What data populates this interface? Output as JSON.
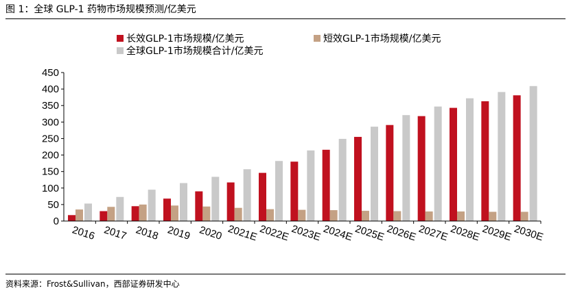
{
  "figure": {
    "title": "图 1：全球 GLP-1 药物市场规模预测/亿美元",
    "source": "资料来源：Frost&Sullivan，西部证券研发中心"
  },
  "colors": {
    "long_acting": "#c0111f",
    "short_acting": "#c4a184",
    "total": "#c9c9c9"
  },
  "chart_data": {
    "type": "bar",
    "categories": [
      "2016",
      "2017",
      "2018",
      "2019",
      "2020",
      "2021E",
      "2022E",
      "2023E",
      "2024E",
      "2025E",
      "2026E",
      "2027E",
      "2028E",
      "2029E",
      "2030E"
    ],
    "series": [
      {
        "name": "长效GLP-1市场规模/亿美元",
        "color": "#c0111f",
        "values": [
          18,
          30,
          45,
          68,
          90,
          117,
          146,
          180,
          216,
          255,
          291,
          318,
          343,
          363,
          381
        ]
      },
      {
        "name": "短效GLP-1市场规模/亿美元",
        "color": "#c4a184",
        "values": [
          35,
          43,
          50,
          47,
          44,
          40,
          36,
          34,
          33,
          31,
          30,
          29,
          29,
          28,
          28
        ]
      },
      {
        "name": "全球GLP-1市场规模合计/亿美元",
        "color": "#c9c9c9",
        "values": [
          53,
          73,
          95,
          115,
          134,
          157,
          182,
          214,
          249,
          286,
          321,
          347,
          372,
          391,
          409
        ]
      }
    ],
    "yticks": [
      0,
      50,
      100,
      150,
      200,
      250,
      300,
      350,
      400,
      450
    ],
    "ylim": [
      0,
      450
    ],
    "legend_position": "top",
    "grid": false
  }
}
